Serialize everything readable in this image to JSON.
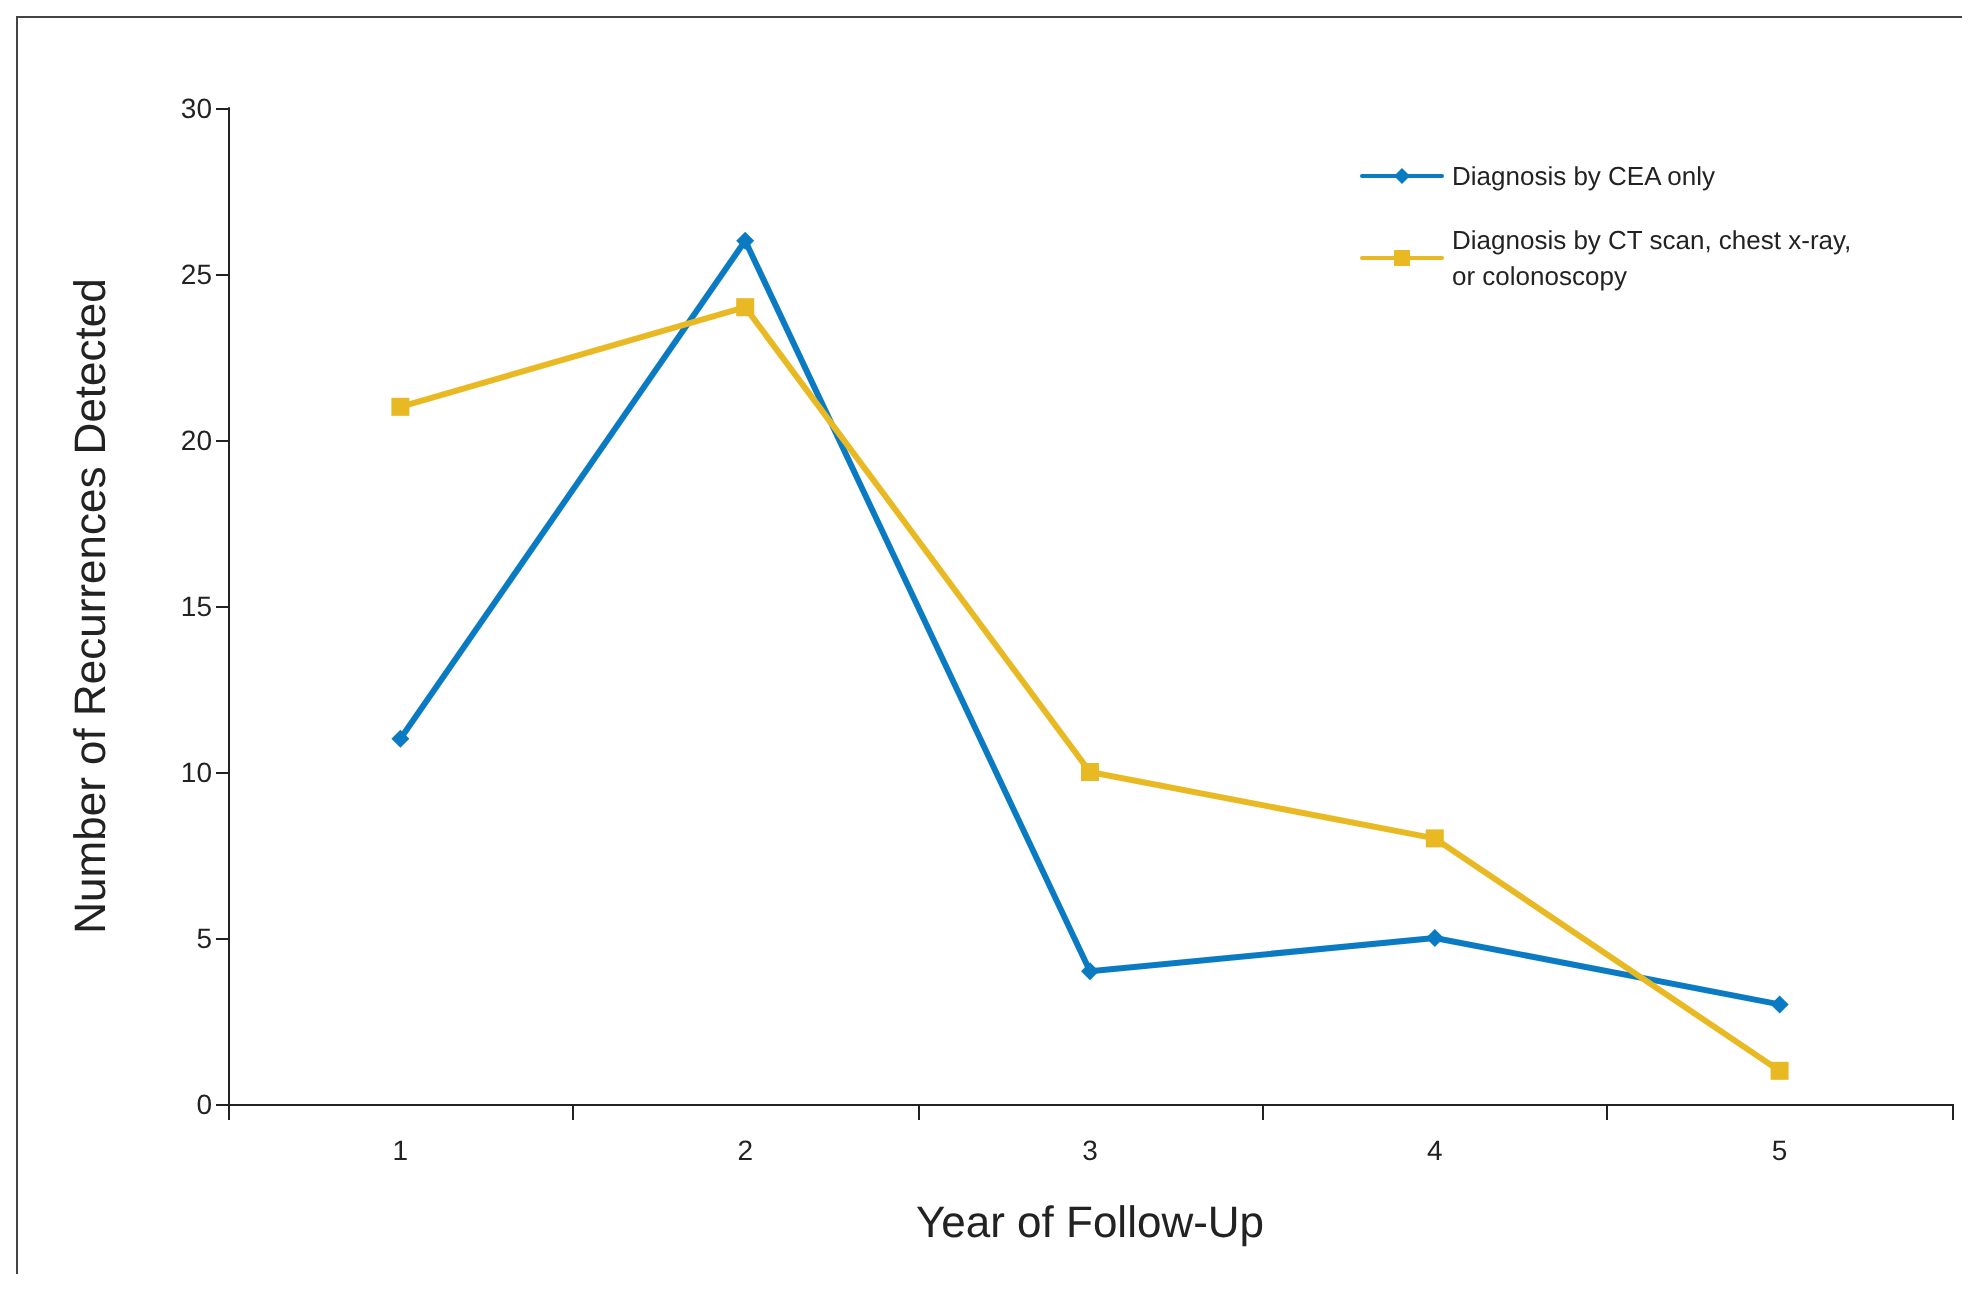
{
  "chart_data": {
    "type": "line",
    "xlabel": "Year of Follow-Up",
    "ylabel": "Number of Recurrences Detected",
    "categories": [
      "1",
      "2",
      "3",
      "4",
      "5"
    ],
    "series": [
      {
        "name": "Diagnosis by CEA only",
        "color": "#0a7bc2",
        "marker": "diamond",
        "values": [
          11,
          26,
          4,
          5,
          3
        ]
      },
      {
        "name": "Diagnosis by CT scan, chest x-ray, or colonoscopy",
        "color": "#e8b923",
        "marker": "square",
        "values": [
          21,
          24,
          10,
          8,
          1
        ]
      }
    ],
    "ylim": [
      0,
      30
    ],
    "yticks": [
      0,
      5,
      10,
      15,
      20,
      25,
      30
    ],
    "grid": false,
    "legend": "top right",
    "line_style": "solid"
  }
}
